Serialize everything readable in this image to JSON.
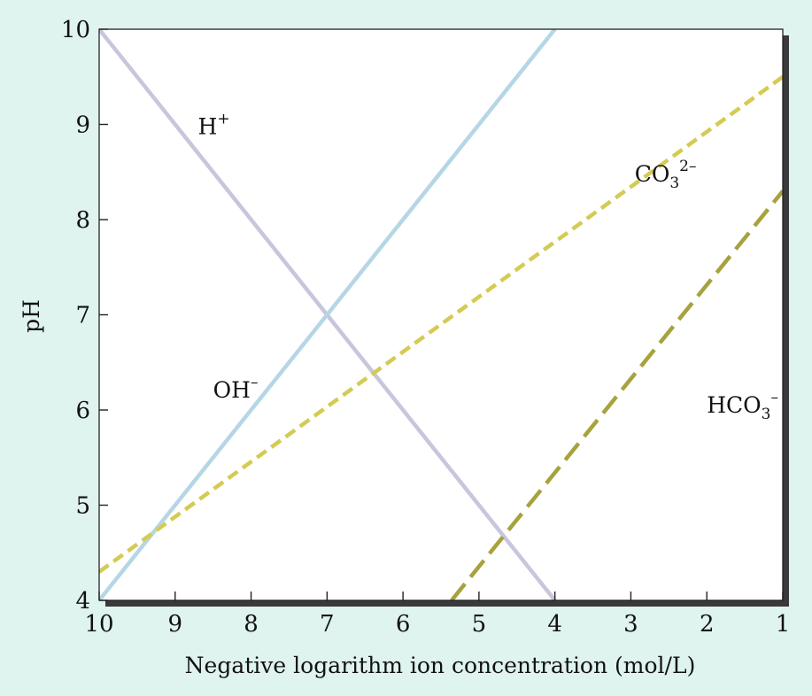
{
  "chart_data": {
    "type": "line",
    "title": "",
    "xlabel": "Negative logarithm ion concentration (mol/L)",
    "ylabel": "pH",
    "xlim": [
      10,
      1
    ],
    "ylim": [
      4,
      10
    ],
    "x_ticks": [
      "10",
      "9",
      "8",
      "7",
      "6",
      "5",
      "4",
      "3",
      "2",
      "1"
    ],
    "y_ticks": [
      "4",
      "5",
      "6",
      "7",
      "8",
      "9",
      "10"
    ],
    "grid": false,
    "legend": "none",
    "series": [
      {
        "name": "H",
        "superscript": "+",
        "subscript": "",
        "color": "#c9c5dc",
        "style": "solid",
        "points": [
          [
            10,
            10
          ],
          [
            4,
            4
          ]
        ],
        "label_at": [
          8.7,
          8.9
        ]
      },
      {
        "name": "OH",
        "superscript": "–",
        "subscript": "",
        "color": "#b6d6e6",
        "style": "solid",
        "points": [
          [
            10,
            4
          ],
          [
            4,
            10
          ]
        ],
        "label_at": [
          8.5,
          6.13
        ]
      },
      {
        "name": "CO",
        "superscript": "2–",
        "subscript": "3",
        "color": "#d4cb52",
        "style": "dashed",
        "points": [
          [
            10,
            4.3
          ],
          [
            1,
            9.5
          ]
        ],
        "label_at": [
          2.95,
          8.4
        ]
      },
      {
        "name": "HCO",
        "superscript": "–",
        "subscript": "3",
        "color": "#a7a23c",
        "style": "longdash",
        "points": [
          [
            5.36,
            4
          ],
          [
            1,
            8.3
          ]
        ],
        "label_at": [
          2.0,
          5.97
        ]
      }
    ]
  }
}
